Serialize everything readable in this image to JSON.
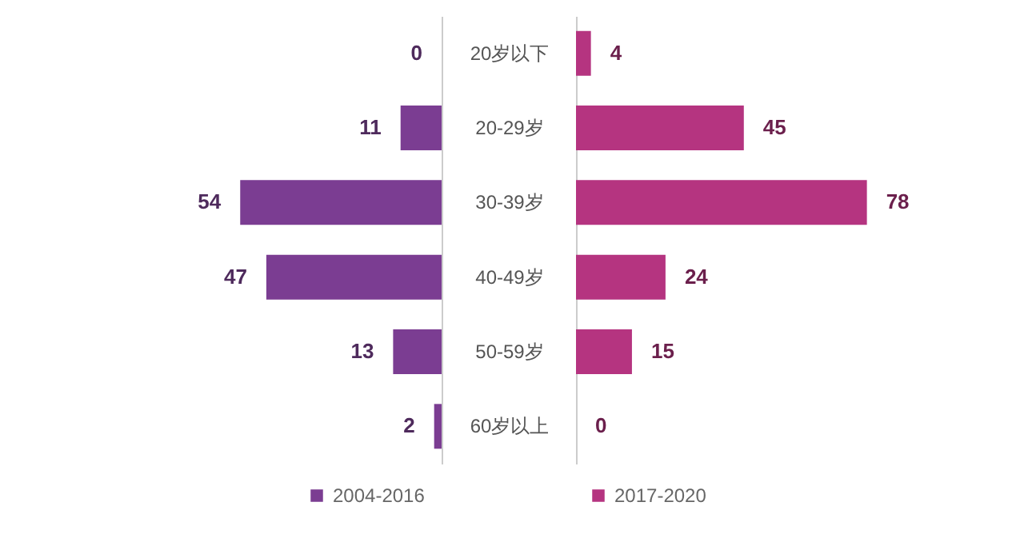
{
  "chart_data": [
    {
      "type": "bar",
      "orientation": "horizontal",
      "categories": [
        "20岁以下",
        "20-29岁",
        "30-39岁",
        "40-49岁",
        "50-59岁",
        "60岁以上"
      ],
      "series": [
        {
          "name": "2004-2016",
          "color": "#7b3d92",
          "values": [
            0,
            11,
            54,
            47,
            13,
            2
          ]
        }
      ],
      "data_labels": true,
      "legend": "bottom"
    },
    {
      "type": "bar",
      "orientation": "horizontal",
      "categories": [
        "20岁以下",
        "20-29岁",
        "30-39岁",
        "40-49岁",
        "50-59岁",
        "60岁以上"
      ],
      "series": [
        {
          "name": "2017-2020",
          "color": "#b53480",
          "values": [
            4,
            45,
            78,
            24,
            15,
            0
          ]
        }
      ],
      "data_labels": true,
      "legend": "bottom",
      "tick_labels": false
    }
  ]
}
